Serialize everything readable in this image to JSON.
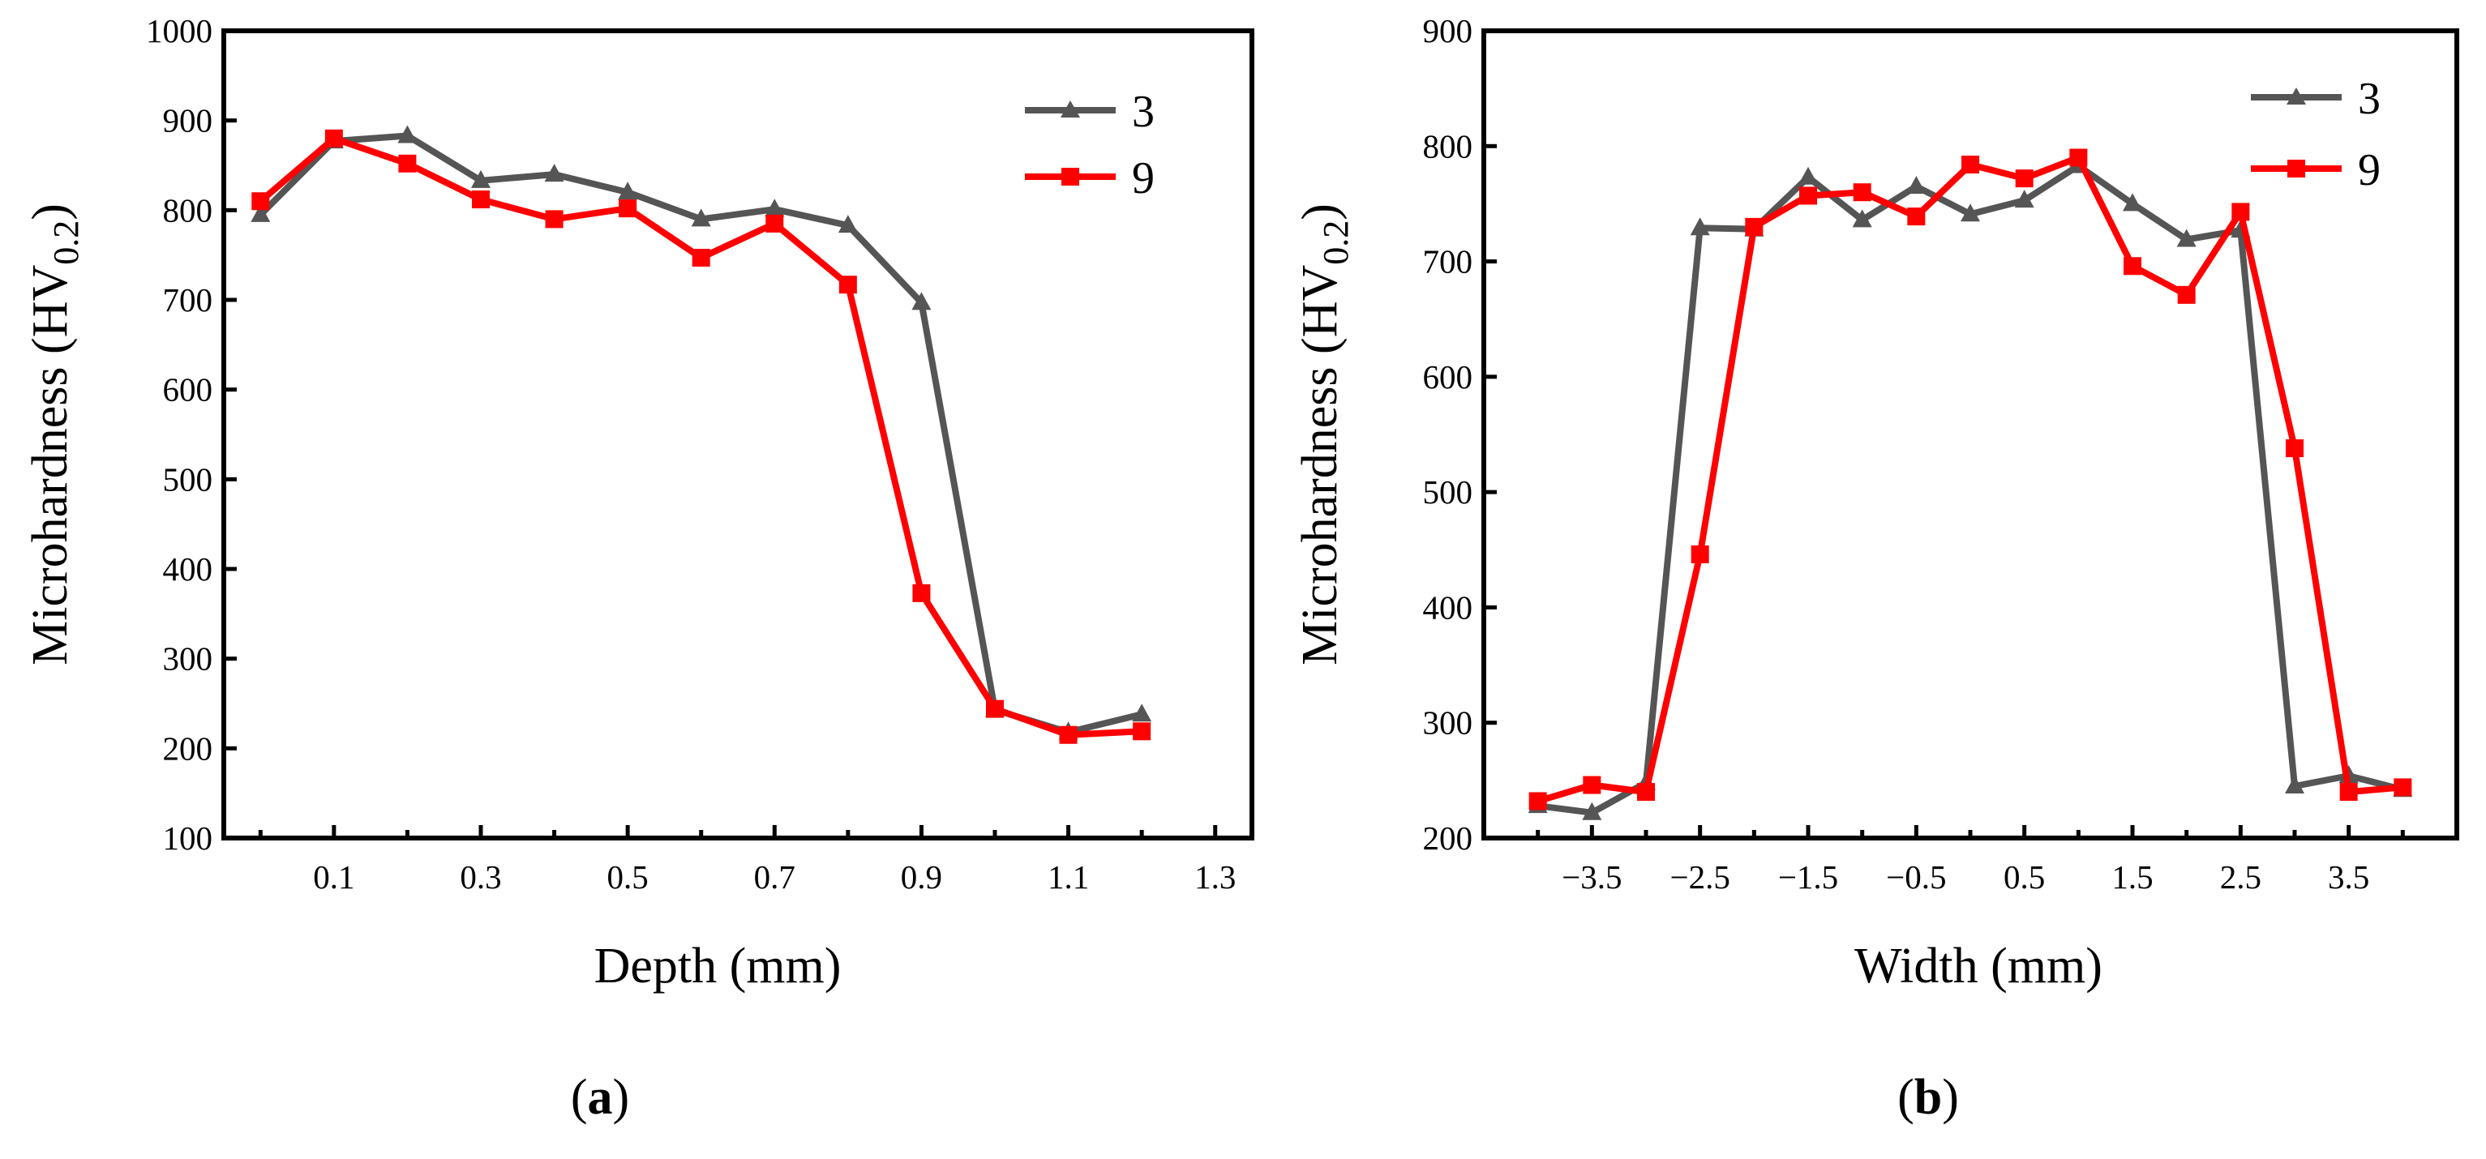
{
  "chart_data": [
    {
      "type": "line",
      "panel_label": {
        "open": "(",
        "letter": "a",
        "close": ")"
      },
      "xlabel": "Depth (mm)",
      "ylabel": {
        "main": "Microhardness (HV",
        "sub": "0.2",
        "close": ")"
      },
      "xlim": [
        -0.05,
        1.35
      ],
      "ylim": [
        100,
        1000
      ],
      "xtick_labels": [
        {
          "x": 0.1,
          "label": "0.1"
        },
        {
          "x": 0.3,
          "label": "0.3"
        },
        {
          "x": 0.5,
          "label": "0.5"
        },
        {
          "x": 0.7,
          "label": "0.7"
        },
        {
          "x": 0.9,
          "label": "0.9"
        },
        {
          "x": 1.1,
          "label": "1.1"
        },
        {
          "x": 1.3,
          "label": "1.3"
        }
      ],
      "xtick_minor": [
        0.0,
        0.2,
        0.4,
        0.6,
        0.8,
        1.0,
        1.2
      ],
      "ytick_labels": [
        {
          "y": 100,
          "label": "100"
        },
        {
          "y": 200,
          "label": "200"
        },
        {
          "y": 300,
          "label": "300"
        },
        {
          "y": 400,
          "label": "400"
        },
        {
          "y": 500,
          "label": "500"
        },
        {
          "y": 600,
          "label": "600"
        },
        {
          "y": 700,
          "label": "700"
        },
        {
          "y": 800,
          "label": "800"
        },
        {
          "y": 900,
          "label": "900"
        },
        {
          "y": 1000,
          "label": "1000"
        }
      ],
      "legend_position": "top-right",
      "series": [
        {
          "name": "3",
          "color": "#555555",
          "marker": "triangle",
          "x": [
            0.0,
            0.1,
            0.2,
            0.3,
            0.4,
            0.5,
            0.6,
            0.7,
            0.8,
            0.9,
            1.0,
            1.1,
            1.2
          ],
          "values": [
            795,
            877,
            883,
            833,
            840,
            820,
            790,
            801,
            783,
            697,
            243,
            218,
            238
          ]
        },
        {
          "name": "9",
          "color": "#ff0000",
          "marker": "square",
          "x": [
            0.0,
            0.1,
            0.2,
            0.3,
            0.4,
            0.5,
            0.6,
            0.7,
            0.8,
            0.9,
            1.0,
            1.1,
            1.2
          ],
          "values": [
            810,
            880,
            852,
            812,
            790,
            802,
            747,
            785,
            717,
            373,
            244,
            215,
            219
          ]
        }
      ]
    },
    {
      "type": "line",
      "panel_label": {
        "open": "(",
        "letter": "b",
        "close": ")"
      },
      "xlabel": "Width (mm)",
      "ylabel": {
        "main": "Microhardness (HV",
        "sub": "0.2",
        "close": ")"
      },
      "xlim": [
        -4.5,
        4.5
      ],
      "ylim": [
        200,
        900
      ],
      "xtick_labels": [
        {
          "x": -3.5,
          "label": "−3.5"
        },
        {
          "x": -2.5,
          "label": "−2.5"
        },
        {
          "x": -1.5,
          "label": "−1.5"
        },
        {
          "x": -0.5,
          "label": "−0.5"
        },
        {
          "x": 0.5,
          "label": "0.5"
        },
        {
          "x": 1.5,
          "label": "1.5"
        },
        {
          "x": 2.5,
          "label": "2.5"
        },
        {
          "x": 3.5,
          "label": "3.5"
        }
      ],
      "xtick_minor": [
        -4.0,
        -3.0,
        -2.0,
        -1.0,
        0.0,
        1.0,
        2.0,
        3.0,
        4.0
      ],
      "ytick_labels": [
        {
          "y": 200,
          "label": "200"
        },
        {
          "y": 300,
          "label": "300"
        },
        {
          "y": 400,
          "label": "400"
        },
        {
          "y": 500,
          "label": "500"
        },
        {
          "y": 600,
          "label": "600"
        },
        {
          "y": 700,
          "label": "700"
        },
        {
          "y": 800,
          "label": "800"
        },
        {
          "y": 900,
          "label": "900"
        }
      ],
      "legend_position": "top-right",
      "series": [
        {
          "name": "3",
          "color": "#555555",
          "marker": "triangle",
          "x": [
            -4.0,
            -3.5,
            -3.0,
            -2.5,
            -2.0,
            -1.5,
            -1.0,
            -0.5,
            0.0,
            0.5,
            1.0,
            1.5,
            2.0,
            2.5,
            3.0,
            3.5,
            4.0
          ],
          "values": [
            228,
            222,
            248,
            729,
            728,
            773,
            736,
            765,
            741,
            753,
            783,
            750,
            719,
            727,
            245,
            254,
            242
          ]
        },
        {
          "name": "9",
          "color": "#ff0000",
          "marker": "square",
          "x": [
            -4.0,
            -3.5,
            -3.0,
            -2.5,
            -2.0,
            -1.5,
            -1.0,
            -0.5,
            0.0,
            0.5,
            1.0,
            1.5,
            2.0,
            2.5,
            3.0,
            3.5,
            4.0
          ],
          "values": [
            232,
            246,
            240,
            446,
            730,
            757,
            760,
            739,
            784,
            772,
            790,
            696,
            671,
            743,
            538,
            240,
            244
          ]
        }
      ]
    }
  ]
}
